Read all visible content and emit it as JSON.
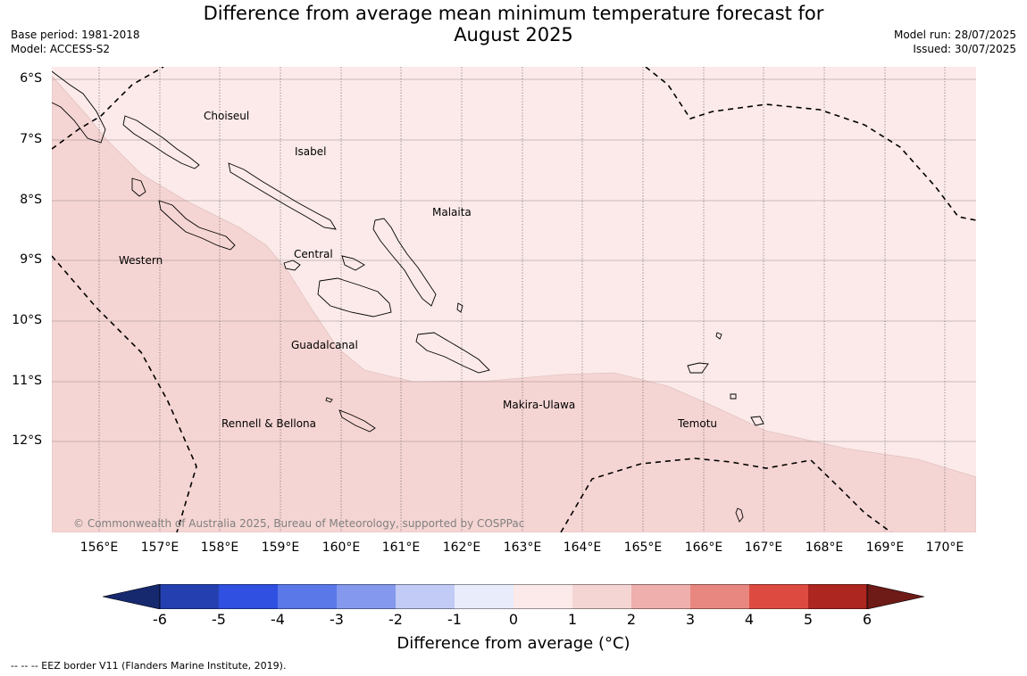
{
  "title": {
    "line1": "Difference from average mean minimum temperature forecast for",
    "line2": "August 2025"
  },
  "meta": {
    "base_period": "Base period: 1981-2018",
    "model": "Model: ACCESS-S2",
    "model_run": "Model run: 28/07/2025",
    "issued": "Issued: 30/07/2025"
  },
  "map": {
    "latitude_labels": [
      "6°S",
      "7°S",
      "8°S",
      "9°S",
      "10°S",
      "11°S",
      "12°S"
    ],
    "longitude_labels": [
      "156°E",
      "157°E",
      "158°E",
      "159°E",
      "160°E",
      "161°E",
      "162°E",
      "163°E",
      "164°E",
      "165°E",
      "166°E",
      "167°E",
      "168°E",
      "169°E",
      "170°E"
    ],
    "region_labels": [
      "Choiseul",
      "Isabel",
      "Malaita",
      "Western",
      "Central",
      "Guadalcanal",
      "Makira-Ulawa",
      "Rennell & Bellona",
      "Temotu"
    ],
    "copyright": "© Commonwealth of Australia 2025, Bureau of Meteorology, supported by COSPPac",
    "anomaly_bands": [
      {
        "range": "0 to 1",
        "color": "#fbeae9"
      },
      {
        "range": "1 to 2",
        "color": "#f5d5d3"
      }
    ]
  },
  "colorbar": {
    "ticks": [
      "-6",
      "-5",
      "-4",
      "-3",
      "-2",
      "-1",
      "0",
      "1",
      "2",
      "3",
      "4",
      "5",
      "6"
    ],
    "colors": [
      "#2440b0",
      "#2f50e0",
      "#5a78e8",
      "#8499ee",
      "#c2cbf5",
      "#e9edfb",
      "#fbeae9",
      "#f5d5d3",
      "#efafac",
      "#e8877f",
      "#dd4b40",
      "#ad2620"
    ],
    "extend_low_color": "#16286e",
    "extend_high_color": "#6e1a16",
    "label": "Difference from average (°C)"
  },
  "footnote": "--  --  -- EEZ border V11 (Flanders Marine Institute, 2019)."
}
